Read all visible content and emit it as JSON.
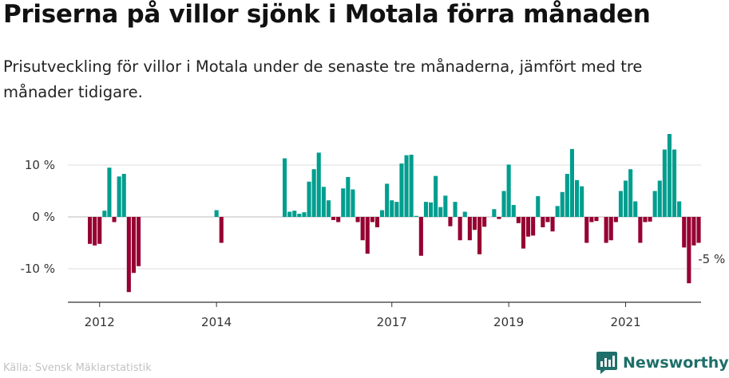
{
  "title": "Priserna på villor sjönk i Motala förra månaden",
  "subtitle": "Prisutveckling för villor i Motala under de senaste tre månaderna, jämfört med tre månader tidigare.",
  "source": "Källa: Svensk Mäklarstatistik",
  "brand": {
    "name": "Newsworthy",
    "icon": "newsworthy-logo-icon"
  },
  "colors": {
    "positive": "#009e8f",
    "negative": "#960032",
    "grid": "#dddddd",
    "axis": "#333333"
  },
  "chart_data": {
    "type": "bar",
    "title": "Priserna på villor sjönk i Motala förra månaden",
    "xlabel": "",
    "ylabel": "",
    "ylim": [
      -17,
      20
    ],
    "yticks": [
      {
        "value": 10,
        "label": "10 %"
      },
      {
        "value": 0,
        "label": "0 %"
      },
      {
        "value": -10,
        "label": "-10 %"
      }
    ],
    "xticks": [
      {
        "label": "2012",
        "index": 2
      },
      {
        "label": "2014",
        "index": 26
      },
      {
        "label": "2017",
        "index": 62
      },
      {
        "label": "2019",
        "index": 86
      },
      {
        "label": "2021",
        "index": 110
      }
    ],
    "start": "2011-11",
    "values": [
      -5.2,
      -5.5,
      -5.2,
      1.2,
      9.5,
      -1.0,
      7.8,
      8.3,
      -14.5,
      -10.8,
      -9.5,
      0,
      0,
      0,
      0,
      0,
      0,
      0,
      0,
      0,
      0,
      0,
      0,
      0,
      0,
      0,
      1.3,
      -5.0,
      0,
      0,
      0,
      0,
      0,
      0,
      0,
      0,
      0,
      0,
      0,
      0,
      11.3,
      1.0,
      1.2,
      0.6,
      0.9,
      6.8,
      9.2,
      12.4,
      5.8,
      3.2,
      -0.6,
      -1.0,
      5.5,
      7.7,
      5.3,
      -1.0,
      -4.5,
      -7.1,
      -1.0,
      -2.0,
      1.3,
      6.4,
      3.2,
      2.9,
      10.3,
      11.9,
      12.0,
      0.2,
      -7.5,
      2.9,
      2.8,
      7.9,
      1.9,
      4.1,
      -1.8,
      2.9,
      -4.5,
      1.0,
      -4.5,
      -2.5,
      -7.2,
      -1.9,
      0,
      1.5,
      -0.4,
      5.0,
      10.1,
      2.3,
      -1.2,
      -6.1,
      -3.8,
      -3.6,
      4.0,
      -2.0,
      -1.0,
      -2.8,
      2.1,
      4.8,
      8.3,
      13.1,
      7.1,
      5.9,
      -5.0,
      -1.0,
      -0.8,
      0,
      -5.0,
      -4.5,
      -1.0,
      5.0,
      7.0,
      9.2,
      3.0,
      -5.0,
      -1.0,
      -0.9,
      5.0,
      7.0,
      13.0,
      16.0,
      13.0,
      3.0,
      -5.9,
      -12.8,
      -5.5,
      -5.0
    ],
    "annotations": [
      {
        "text": "-5 %",
        "index": 127
      }
    ]
  }
}
